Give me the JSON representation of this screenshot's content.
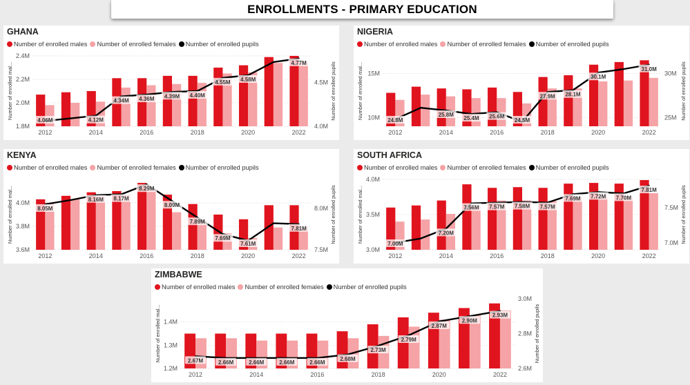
{
  "page_title": "ENROLLMENTS - PRIMARY EDUCATION",
  "legend_labels": [
    "Number of enrolled males",
    "Number of enrolled females",
    "Number of enrolled pupils"
  ],
  "colors": {
    "males": "#e0141e",
    "females": "#f5a3a6",
    "pupils": "#000000",
    "pupils_faded": "#b5b5b5"
  },
  "chart_data": [
    {
      "type": "bar",
      "title": "GHANA",
      "x": [
        2012,
        2013,
        2014,
        2015,
        2016,
        2017,
        2018,
        2019,
        2020,
        2021,
        2022
      ],
      "x_ticks": [
        "2012",
        "2014",
        "2016",
        "2018",
        "2020",
        "2022"
      ],
      "ylabel_left": "Number of enrolled mal...",
      "ylabel_right": "Number of enrolled pupils",
      "yleft_ticks": [
        "1.8M",
        "2.0M",
        "2.2M",
        "2.4M"
      ],
      "yright_ticks": [
        "4.0M",
        "4.5M"
      ],
      "ylim_left": [
        1.8,
        2.4
      ],
      "ylim_right": [
        4.0,
        4.8
      ],
      "series": [
        {
          "name": "Number of enrolled males",
          "values": [
            2.07,
            2.09,
            2.1,
            2.21,
            2.21,
            2.23,
            2.23,
            2.3,
            2.32,
            2.39,
            2.4
          ]
        },
        {
          "name": "Number of enrolled females",
          "values": [
            1.98,
            2.0,
            2.01,
            2.13,
            2.15,
            2.16,
            2.17,
            2.25,
            2.26,
            2.34,
            2.35
          ]
        },
        {
          "name": "Number of enrolled pupils",
          "values": [
            4.06,
            4.09,
            4.12,
            4.34,
            4.36,
            4.39,
            4.4,
            4.55,
            4.58,
            4.73,
            4.77
          ]
        }
      ],
      "labels": [
        "4.06M",
        "",
        "4.12M",
        "4.34M",
        "4.36M",
        "4.39M",
        "4.40M",
        "4.55M",
        "4.58M",
        "",
        "4.77M"
      ]
    },
    {
      "type": "bar",
      "title": "NIGERIA",
      "x": [
        2012,
        2013,
        2014,
        2015,
        2016,
        2017,
        2018,
        2019,
        2020,
        2021,
        2022
      ],
      "x_ticks": [
        "2012",
        "2014",
        "2016",
        "2018",
        "2020",
        "2022"
      ],
      "ylabel_left": "Number of enrolled mal...",
      "ylabel_right": "Number of enrolled pupils",
      "yleft_ticks": [
        "10M",
        "15M"
      ],
      "yright_ticks": [
        "25M",
        "30M"
      ],
      "ylim_left": [
        9,
        17
      ],
      "ylim_right": [
        24,
        32
      ],
      "series": [
        {
          "name": "Number of enrolled males",
          "values": [
            12.8,
            13.5,
            13.3,
            13.2,
            13.4,
            12.9,
            14.6,
            14.8,
            16.0,
            16.3,
            16.5
          ]
        },
        {
          "name": "Number of enrolled females",
          "values": [
            12.0,
            12.6,
            12.4,
            12.2,
            12.2,
            11.6,
            13.3,
            13.3,
            14.1,
            14.2,
            14.5
          ]
        },
        {
          "name": "Number of enrolled pupils",
          "values": [
            24.8,
            26.1,
            25.8,
            25.4,
            25.6,
            24.5,
            27.9,
            28.1,
            30.1,
            30.5,
            31.0
          ]
        }
      ],
      "labels": [
        "24.8M",
        "",
        "25.8M",
        "25.4M",
        "25.6M",
        "24.5M",
        "27.9M",
        "28.1M",
        "30.1M",
        "",
        "31.0M"
      ]
    },
    {
      "type": "bar",
      "title": "KENYA",
      "x": [
        2012,
        2013,
        2014,
        2015,
        2016,
        2017,
        2018,
        2019,
        2020,
        2021,
        2022
      ],
      "x_ticks": [
        "2012",
        "2014",
        "2016",
        "2018",
        "2020",
        "2022"
      ],
      "ylabel_left": "Number of enrolled mal...",
      "ylabel_right": "Number of enrolled pupils",
      "yleft_ticks": [
        "3.6M",
        "3.8M",
        "4.0M"
      ],
      "yright_ticks": [
        "7.5M",
        "8.0M"
      ],
      "ylim_left": [
        3.6,
        4.2
      ],
      "ylim_right": [
        7.5,
        8.35
      ],
      "series": [
        {
          "name": "Number of enrolled males",
          "values": [
            4.03,
            4.06,
            4.09,
            4.1,
            4.17,
            4.07,
            3.99,
            3.9,
            3.86,
            3.98,
            3.98
          ]
        },
        {
          "name": "Number of enrolled females",
          "values": [
            4.0,
            4.03,
            4.06,
            4.07,
            4.12,
            3.92,
            3.85,
            3.74,
            3.7,
            3.79,
            3.8
          ]
        },
        {
          "name": "Number of enrolled pupils",
          "values": [
            8.05,
            8.1,
            8.16,
            8.17,
            8.29,
            8.09,
            7.89,
            7.69,
            7.61,
            7.82,
            7.81
          ]
        }
      ],
      "labels": [
        "8.05M",
        "",
        "8.16M",
        "8.17M",
        "8.29M",
        "8.09M",
        "7.89M",
        "7.69M",
        "7.61M",
        "",
        "7.81M"
      ]
    },
    {
      "type": "bar",
      "title": "SOUTH AFRICA",
      "x": [
        2012,
        2013,
        2014,
        2015,
        2016,
        2017,
        2018,
        2019,
        2020,
        2021,
        2022
      ],
      "x_ticks": [
        "2012",
        "2014",
        "2016",
        "2018",
        "2020",
        "2022"
      ],
      "ylabel_left": "Number of enrolled mal...",
      "ylabel_right": "Number of enrolled pupils",
      "yleft_ticks": [
        "3.0M",
        "3.5M",
        "4.0M"
      ],
      "yright_ticks": [
        "7.0M",
        "7.5M"
      ],
      "ylim_left": [
        3.0,
        4.0
      ],
      "ylim_right": [
        6.9,
        7.9
      ],
      "series": [
        {
          "name": "Number of enrolled males",
          "values": [
            3.6,
            3.63,
            3.7,
            3.93,
            3.88,
            3.89,
            3.88,
            3.94,
            3.95,
            3.94,
            3.99
          ]
        },
        {
          "name": "Number of enrolled females",
          "values": [
            3.4,
            3.43,
            3.51,
            3.63,
            3.7,
            3.7,
            3.69,
            3.75,
            3.77,
            3.76,
            3.81
          ]
        },
        {
          "name": "Number of enrolled pupils",
          "values": [
            7.0,
            7.06,
            7.2,
            7.56,
            7.57,
            7.58,
            7.57,
            7.69,
            7.72,
            7.7,
            7.81
          ]
        }
      ],
      "labels": [
        "7.00M",
        "",
        "7.20M",
        "7.56M",
        "7.57M",
        "7.58M",
        "7.57M",
        "7.69M",
        "7.72M",
        "7.70M",
        "7.81M"
      ]
    },
    {
      "type": "bar",
      "title": "ZIMBABWE",
      "x": [
        2012,
        2013,
        2014,
        2015,
        2016,
        2017,
        2018,
        2019,
        2020,
        2021,
        2022
      ],
      "x_ticks": [
        "2012",
        "2014",
        "2016",
        "2018",
        "2020",
        "2022"
      ],
      "ylabel_left": "Number of enrolled mal...",
      "ylabel_right": "Number of enrolled pupils",
      "yleft_ticks": [
        "1.2M",
        "1.3M",
        "1.4M"
      ],
      "yright_ticks": [
        "2.6M",
        "2.8M",
        "3.0M"
      ],
      "ylim_left": [
        1.2,
        1.5
      ],
      "ylim_right": [
        2.6,
        3.0
      ],
      "series": [
        {
          "name": "Number of enrolled males",
          "values": [
            1.35,
            1.35,
            1.35,
            1.35,
            1.35,
            1.36,
            1.39,
            1.42,
            1.44,
            1.46,
            1.48
          ]
        },
        {
          "name": "Number of enrolled females",
          "values": [
            1.33,
            1.33,
            1.32,
            1.32,
            1.32,
            1.33,
            1.34,
            1.38,
            1.41,
            1.43,
            1.45
          ]
        },
        {
          "name": "Number of enrolled pupils",
          "values": [
            2.67,
            2.66,
            2.66,
            2.66,
            2.66,
            2.68,
            2.73,
            2.79,
            2.87,
            2.9,
            2.93
          ]
        }
      ],
      "labels": [
        "2.67M",
        "2.66M",
        "2.66M",
        "2.66M",
        "2.66M",
        "2.68M",
        "2.73M",
        "2.79M",
        "2.87M",
        "2.90M",
        "2.93M"
      ]
    }
  ]
}
